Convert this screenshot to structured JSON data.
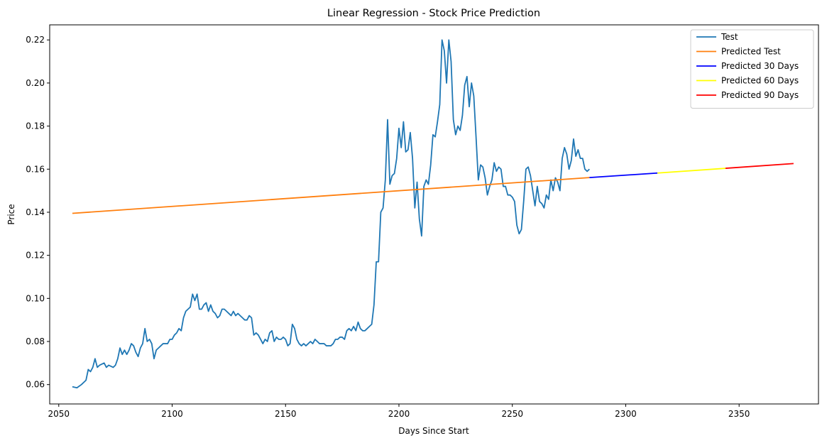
{
  "chart_data": {
    "type": "line",
    "title": "Linear Regression - Stock Price Prediction",
    "xlabel": "Days Since Start",
    "ylabel": "Price",
    "xlim": [
      2046,
      2385
    ],
    "ylim": [
      0.051,
      0.227
    ],
    "xticks": [
      2050,
      2100,
      2150,
      2200,
      2250,
      2300,
      2350
    ],
    "yticks": [
      0.06,
      0.08,
      0.1,
      0.12,
      0.14,
      0.16,
      0.18,
      0.2,
      0.22
    ],
    "ytick_labels": [
      "0.06",
      "0.08",
      "0.10",
      "0.12",
      "0.14",
      "0.16",
      "0.18",
      "0.20",
      "0.22"
    ],
    "grid": false,
    "legend_position": "top-right",
    "series": [
      {
        "name": "Test",
        "color": "#1f77b4",
        "x": [
          2056,
          2058,
          2060,
          2062,
          2063,
          2064,
          2065,
          2066,
          2067,
          2068,
          2070,
          2071,
          2072,
          2074,
          2075,
          2076,
          2077,
          2078,
          2079,
          2080,
          2081,
          2082,
          2083,
          2084,
          2085,
          2086,
          2087,
          2088,
          2089,
          2090,
          2091,
          2092,
          2093,
          2094,
          2095,
          2096,
          2097,
          2098,
          2099,
          2100,
          2101,
          2102,
          2103,
          2104,
          2105,
          2106,
          2107,
          2108,
          2109,
          2110,
          2111,
          2112,
          2113,
          2114,
          2115,
          2116,
          2117,
          2118,
          2119,
          2120,
          2121,
          2122,
          2123,
          2124,
          2125,
          2126,
          2127,
          2128,
          2129,
          2130,
          2131,
          2132,
          2133,
          2134,
          2135,
          2136,
          2137,
          2138,
          2139,
          2140,
          2141,
          2142,
          2143,
          2144,
          2145,
          2146,
          2147,
          2148,
          2149,
          2150,
          2151,
          2152,
          2153,
          2154,
          2155,
          2156,
          2157,
          2158,
          2159,
          2160,
          2161,
          2162,
          2163,
          2164,
          2165,
          2166,
          2167,
          2168,
          2169,
          2170,
          2171,
          2172,
          2173,
          2174,
          2175,
          2176,
          2177,
          2178,
          2179,
          2180,
          2181,
          2182,
          2183,
          2184,
          2185,
          2186,
          2187,
          2188,
          2189,
          2190,
          2191,
          2192,
          2193,
          2194,
          2195,
          2196,
          2197,
          2198,
          2199,
          2200,
          2201,
          2202,
          2203,
          2204,
          2205,
          2206,
          2207,
          2208,
          2209,
          2210,
          2211,
          2212,
          2213,
          2214,
          2215,
          2216,
          2217,
          2218,
          2219,
          2220,
          2221,
          2222,
          2223,
          2224,
          2225,
          2226,
          2227,
          2228,
          2229,
          2230,
          2231,
          2232,
          2233,
          2234,
          2235,
          2236,
          2237,
          2238,
          2239,
          2240,
          2241,
          2242,
          2243,
          2244,
          2245,
          2246,
          2247,
          2248,
          2249,
          2250,
          2251,
          2252,
          2253,
          2254,
          2255,
          2256,
          2257,
          2258,
          2259,
          2260,
          2261,
          2262,
          2263,
          2264,
          2265,
          2266,
          2267,
          2268,
          2269,
          2270,
          2271,
          2272,
          2273,
          2274,
          2275,
          2276,
          2277,
          2278,
          2279,
          2280,
          2281,
          2282,
          2283,
          2284
        ],
        "y": [
          0.059,
          0.0585,
          0.06,
          0.062,
          0.067,
          0.066,
          0.068,
          0.072,
          0.068,
          0.069,
          0.07,
          0.068,
          0.069,
          0.068,
          0.069,
          0.072,
          0.077,
          0.074,
          0.076,
          0.074,
          0.076,
          0.079,
          0.078,
          0.075,
          0.073,
          0.077,
          0.079,
          0.086,
          0.08,
          0.081,
          0.079,
          0.072,
          0.076,
          0.077,
          0.078,
          0.079,
          0.079,
          0.079,
          0.081,
          0.081,
          0.083,
          0.084,
          0.086,
          0.085,
          0.091,
          0.094,
          0.095,
          0.096,
          0.102,
          0.099,
          0.102,
          0.095,
          0.095,
          0.097,
          0.098,
          0.094,
          0.097,
          0.094,
          0.093,
          0.091,
          0.092,
          0.095,
          0.095,
          0.094,
          0.093,
          0.092,
          0.094,
          0.092,
          0.093,
          0.092,
          0.091,
          0.09,
          0.09,
          0.092,
          0.091,
          0.083,
          0.084,
          0.083,
          0.081,
          0.079,
          0.081,
          0.08,
          0.084,
          0.085,
          0.08,
          0.082,
          0.081,
          0.081,
          0.082,
          0.081,
          0.078,
          0.079,
          0.088,
          0.086,
          0.081,
          0.079,
          0.078,
          0.079,
          0.078,
          0.079,
          0.08,
          0.079,
          0.081,
          0.08,
          0.079,
          0.079,
          0.079,
          0.078,
          0.078,
          0.078,
          0.079,
          0.081,
          0.081,
          0.082,
          0.082,
          0.081,
          0.085,
          0.086,
          0.085,
          0.087,
          0.085,
          0.089,
          0.086,
          0.085,
          0.085,
          0.086,
          0.087,
          0.088,
          0.097,
          0.117,
          0.117,
          0.14,
          0.142,
          0.155,
          0.183,
          0.153,
          0.157,
          0.158,
          0.165,
          0.179,
          0.17,
          0.182,
          0.168,
          0.169,
          0.177,
          0.165,
          0.142,
          0.154,
          0.137,
          0.129,
          0.152,
          0.155,
          0.153,
          0.162,
          0.176,
          0.175,
          0.182,
          0.19,
          0.22,
          0.215,
          0.2,
          0.22,
          0.21,
          0.183,
          0.176,
          0.18,
          0.178,
          0.185,
          0.199,
          0.203,
          0.189,
          0.2,
          0.194,
          0.175,
          0.155,
          0.162,
          0.161,
          0.156,
          0.148,
          0.152,
          0.155,
          0.163,
          0.159,
          0.161,
          0.16,
          0.152,
          0.152,
          0.148,
          0.148,
          0.147,
          0.145,
          0.134,
          0.13,
          0.132,
          0.145,
          0.16,
          0.161,
          0.157,
          0.15,
          0.143,
          0.152,
          0.145,
          0.144,
          0.142,
          0.148,
          0.146,
          0.155,
          0.15,
          0.156,
          0.154,
          0.15,
          0.165,
          0.17,
          0.167,
          0.16,
          0.164,
          0.174,
          0.166,
          0.169,
          0.165,
          0.165,
          0.16,
          0.159,
          0.16
        ]
      },
      {
        "name": "Predicted Test",
        "color": "#ff7f0e",
        "x": [
          2056,
          2284
        ],
        "y": [
          0.1395,
          0.1561
        ]
      },
      {
        "name": "Predicted 30 Days",
        "color": "#0000ff",
        "x": [
          2284,
          2314
        ],
        "y": [
          0.1561,
          0.1582
        ]
      },
      {
        "name": "Predicted 60 Days",
        "color": "#ffff00",
        "x": [
          2314,
          2344
        ],
        "y": [
          0.1582,
          0.1604
        ]
      },
      {
        "name": "Predicted 90 Days",
        "color": "#ff0000",
        "x": [
          2344,
          2374
        ],
        "y": [
          0.1604,
          0.1626
        ]
      }
    ]
  }
}
